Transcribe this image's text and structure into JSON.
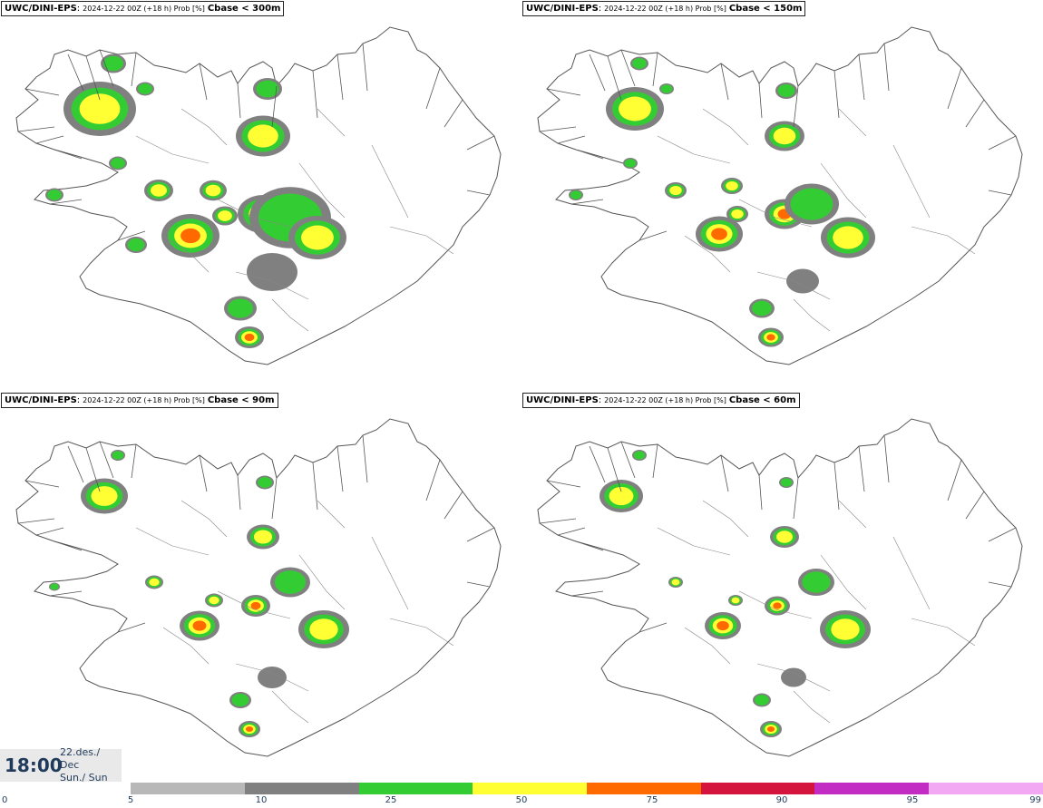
{
  "panels": [
    {
      "model": "UWC/DINI-EPS",
      "meta": "2024-12-22 00Z (+18 h) Prob [%]",
      "variable": "Cbase < 300m"
    },
    {
      "model": "UWC/DINI-EPS",
      "meta": "2024-12-22 00Z (+18 h) Prob [%]",
      "variable": "Cbase < 150m"
    },
    {
      "model": "UWC/DINI-EPS",
      "meta": "2024-12-22 00Z (+18 h) Prob [%]",
      "variable": "Cbase < 90m"
    },
    {
      "model": "UWC/DINI-EPS",
      "meta": "2024-12-22 00Z (+18 h) Prob [%]",
      "variable": "Cbase < 60m"
    }
  ],
  "time": {
    "hour": "18:00",
    "date": "22.des./ Dec",
    "day": "Sun./ Sun"
  },
  "legend": {
    "ticks": [
      "0",
      "5",
      "10",
      "25",
      "50",
      "75",
      "90",
      "95",
      "99"
    ],
    "colors": [
      "#b8b8b8",
      "#808080",
      "#33cc33",
      "#ffff33",
      "#ff6a00",
      "#d4143c",
      "#c22cc2",
      "#f2a8f2"
    ]
  },
  "colors": {
    "low": "#b4b4b4",
    "mid": "#808080",
    "green": "#33cc33",
    "yellow": "#ffff33",
    "orange": "#ff6a00",
    "red": "#d4143c",
    "magenta": "#c22cc2",
    "coast": "#555555"
  }
}
